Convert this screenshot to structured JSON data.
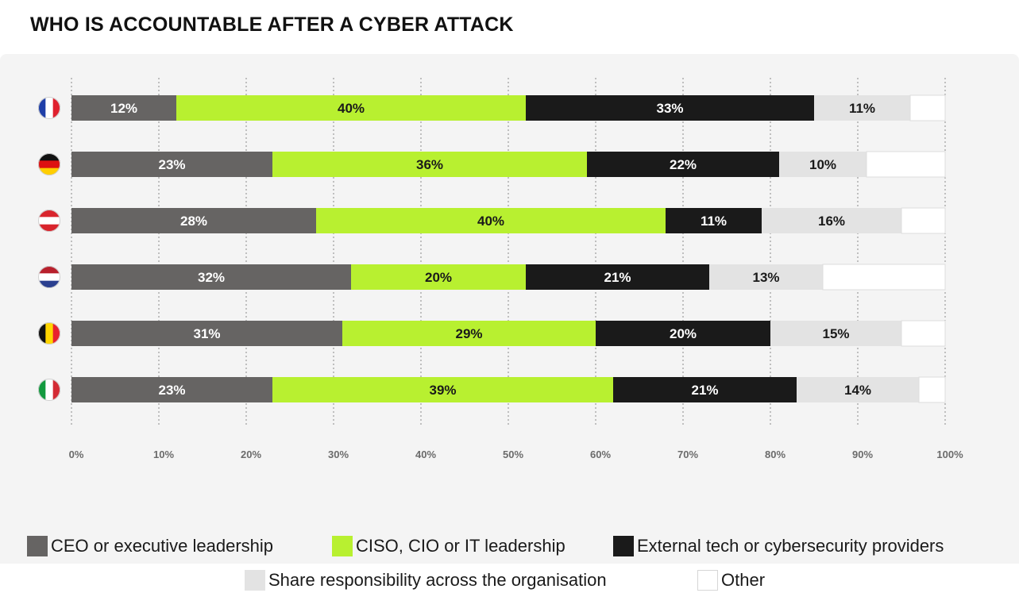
{
  "title": "WHO IS ACCOUNTABLE AFTER A CYBER ATTACK",
  "colors": {
    "ceo": "#666463",
    "ciso": "#b8f030",
    "external": "#1a1a1a",
    "share": "#e3e3e3",
    "other": "#ffffff"
  },
  "chart_data": {
    "type": "bar",
    "orientation": "horizontal",
    "stacked": true,
    "categories": [
      "France",
      "Germany",
      "Austria",
      "Netherlands",
      "Belgium",
      "Italy"
    ],
    "series": [
      {
        "name": "CEO or executive leadership",
        "key": "ceo",
        "values": [
          12,
          23,
          28,
          32,
          31,
          23
        ]
      },
      {
        "name": "CISO, CIO or IT leadership",
        "key": "ciso",
        "values": [
          40,
          36,
          40,
          20,
          29,
          39
        ]
      },
      {
        "name": "External tech or cybersecurity providers",
        "key": "external",
        "values": [
          33,
          22,
          11,
          21,
          20,
          21
        ]
      },
      {
        "name": "Share responsibility across the organisation",
        "key": "share",
        "values": [
          11,
          10,
          16,
          13,
          15,
          14
        ]
      },
      {
        "name": "Other",
        "key": "other",
        "values": [
          4,
          9,
          5,
          14,
          5,
          3
        ]
      }
    ],
    "data_labels": [
      [
        "12%",
        "40%",
        "33%",
        "11%",
        ""
      ],
      [
        "23%",
        "36%",
        "22%",
        "10%",
        ""
      ],
      [
        "28%",
        "40%",
        "11%",
        "16%",
        ""
      ],
      [
        "32%",
        "20%",
        "21%",
        "13%",
        ""
      ],
      [
        "31%",
        "29%",
        "20%",
        "15%",
        ""
      ],
      [
        "23%",
        "39%",
        "21%",
        "14%",
        ""
      ]
    ],
    "xlim": [
      0,
      100
    ],
    "x_ticks": [
      "0%",
      "10%",
      "20%",
      "30%",
      "40%",
      "50%",
      "60%",
      "70%",
      "80%",
      "90%",
      "100%"
    ],
    "grid": "vertical-dotted",
    "legend_position": "bottom",
    "category_icons": [
      "flag-france",
      "flag-germany",
      "flag-austria",
      "flag-netherlands",
      "flag-belgium",
      "flag-italy"
    ]
  }
}
